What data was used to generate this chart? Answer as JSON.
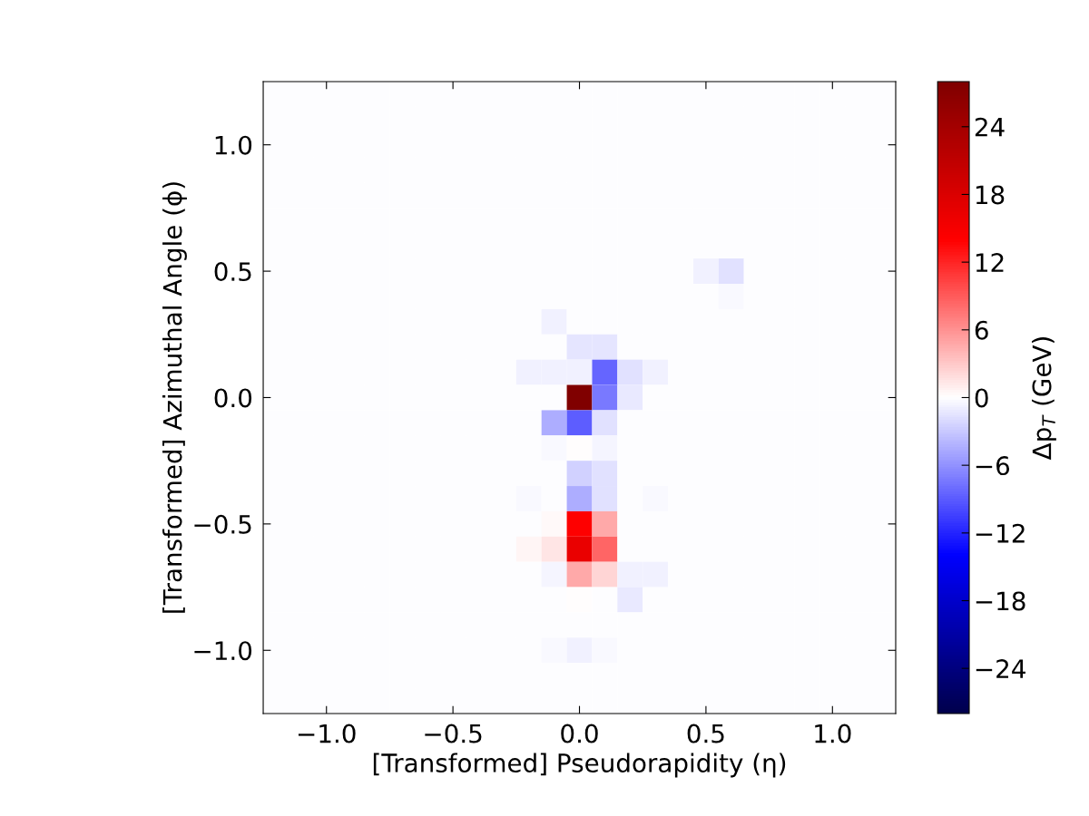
{
  "chart_data": {
    "type": "heatmap",
    "xlabel": "[Transformed] Pseudorapidity (η)",
    "ylabel": "[Transformed] Azimuthal Angle (ϕ)",
    "clabel": "Δp$_{T}$ (GeV)",
    "x": [
      -1.2,
      -1.1,
      -1.0,
      -0.9,
      -0.8,
      -0.7,
      -0.6,
      -0.5,
      -0.4,
      -0.3,
      -0.2,
      -0.1,
      0.0,
      0.1,
      0.2,
      0.3,
      0.4,
      0.5,
      0.6,
      0.7,
      0.8,
      0.9,
      1.0,
      1.1,
      1.2
    ],
    "y": [
      1.2,
      1.1,
      1.0,
      0.9,
      0.8,
      0.7,
      0.6,
      0.5,
      0.4,
      0.3,
      0.2,
      0.1,
      0.0,
      -0.1,
      -0.2,
      -0.3,
      -0.4,
      -0.5,
      -0.6,
      -0.7,
      -0.8,
      -0.9,
      -1.0,
      -1.1,
      -1.2
    ],
    "xlim": [
      -1.25,
      1.25
    ],
    "ylim": [
      -1.25,
      1.25
    ],
    "xticks": [
      {
        "value": -1.0,
        "label": "−1.0"
      },
      {
        "value": -0.5,
        "label": "−0.5"
      },
      {
        "value": 0.0,
        "label": "0.0"
      },
      {
        "value": 0.5,
        "label": "0.5"
      },
      {
        "value": 1.0,
        "label": "1.0"
      }
    ],
    "yticks": [
      {
        "value": -1.0,
        "label": "−1.0"
      },
      {
        "value": -0.5,
        "label": "−0.5"
      },
      {
        "value": 0.0,
        "label": "0.0"
      },
      {
        "value": 0.5,
        "label": "0.5"
      },
      {
        "value": 1.0,
        "label": "1.0"
      }
    ],
    "clim": [
      -28,
      28
    ],
    "cticks": [
      {
        "value": -24,
        "label": "−24"
      },
      {
        "value": -18,
        "label": "−18"
      },
      {
        "value": -12,
        "label": "−12"
      },
      {
        "value": -6,
        "label": "−6"
      },
      0,
      6,
      12,
      18,
      24
    ],
    "cells": [
      [
        -0.1,
        -0.1,
        -0.1,
        -0.1,
        -0.1,
        -0.1,
        -0.1,
        -0.1,
        -0.1,
        -0.1,
        -0.1,
        -0.1,
        -0.1,
        -0.1,
        -0.1,
        -0.1,
        -0.1,
        -0.1,
        -0.1,
        -0.1,
        -0.1,
        -0.1,
        -0.1,
        -0.1,
        -0.1
      ],
      [
        -0.1,
        -0.1,
        -0.1,
        -0.1,
        -0.1,
        -0.1,
        -0.1,
        -0.1,
        -0.1,
        -0.1,
        -0.1,
        -0.1,
        -0.1,
        -0.1,
        -0.1,
        -0.1,
        -0.1,
        -0.1,
        -0.1,
        -0.1,
        -0.1,
        -0.1,
        -0.1,
        -0.1,
        -0.1
      ],
      [
        -0.1,
        -0.1,
        -0.1,
        -0.1,
        -0.1,
        -0.1,
        -0.1,
        -0.1,
        -0.1,
        -0.1,
        -0.1,
        -0.1,
        -0.1,
        -0.1,
        -0.1,
        -0.1,
        -0.1,
        -0.1,
        -0.1,
        -0.1,
        -0.1,
        -0.1,
        -0.1,
        -0.1,
        -0.1
      ],
      [
        -0.1,
        -0.1,
        -0.1,
        -0.1,
        -0.1,
        -0.1,
        -0.1,
        -0.1,
        -0.1,
        -0.1,
        -0.1,
        -0.1,
        -0.1,
        -0.1,
        -0.1,
        -0.1,
        -0.1,
        -0.1,
        -0.1,
        -0.1,
        -0.1,
        -0.1,
        -0.1,
        -0.1,
        -0.1
      ],
      [
        -0.1,
        -0.1,
        -0.1,
        -0.1,
        -0.1,
        -0.1,
        -0.1,
        -0.1,
        -0.1,
        -0.1,
        -0.1,
        -0.1,
        -0.1,
        -0.1,
        -0.1,
        -0.1,
        -0.1,
        -0.1,
        -0.1,
        -0.1,
        -0.1,
        -0.1,
        -0.1,
        -0.1,
        -0.1
      ],
      [
        -0.1,
        -0.1,
        -0.1,
        -0.1,
        -0.1,
        -0.1,
        -0.1,
        -0.1,
        -0.1,
        -0.1,
        -0.1,
        -0.1,
        -0.1,
        -0.1,
        -0.1,
        -0.1,
        -0.1,
        -0.1,
        -0.1,
        -0.1,
        -0.1,
        -0.1,
        -0.1,
        -0.1,
        -0.1
      ],
      [
        -0.1,
        -0.1,
        -0.1,
        -0.1,
        -0.1,
        -0.1,
        -0.1,
        -0.1,
        -0.1,
        -0.1,
        -0.1,
        -0.1,
        -0.1,
        -0.1,
        -0.1,
        -0.1,
        -0.1,
        -0.1,
        -0.1,
        -0.1,
        -0.1,
        -0.1,
        -0.1,
        -0.1,
        -0.1
      ],
      [
        -0.1,
        -0.1,
        -0.1,
        -0.1,
        -0.1,
        -0.1,
        -0.1,
        -0.1,
        -0.1,
        -0.1,
        -0.1,
        -0.1,
        -0.1,
        -0.1,
        -0.1,
        -0.1,
        -0.1,
        -0.8,
        -1.6,
        -0.1,
        -0.1,
        -0.1,
        -0.1,
        -0.1,
        -0.1
      ],
      [
        -0.1,
        -0.1,
        -0.1,
        -0.1,
        -0.1,
        -0.1,
        -0.1,
        -0.1,
        -0.1,
        -0.1,
        -0.1,
        -0.1,
        -0.1,
        -0.1,
        -0.1,
        -0.1,
        -0.1,
        -0.1,
        -0.3,
        -0.1,
        -0.1,
        -0.1,
        -0.1,
        -0.1,
        -0.1
      ],
      [
        -0.1,
        -0.1,
        -0.1,
        -0.1,
        -0.1,
        -0.1,
        -0.1,
        -0.1,
        -0.1,
        -0.1,
        -0.1,
        -0.8,
        -0.1,
        -0.1,
        -0.1,
        -0.1,
        -0.1,
        -0.1,
        -0.1,
        -0.1,
        -0.1,
        -0.1,
        -0.1,
        -0.1,
        -0.1
      ],
      [
        -0.1,
        -0.1,
        -0.1,
        -0.1,
        -0.1,
        -0.1,
        -0.1,
        -0.1,
        -0.1,
        -0.1,
        -0.1,
        -0.1,
        -1.4,
        -1.4,
        -0.1,
        -0.1,
        -0.1,
        -0.1,
        -0.1,
        -0.1,
        -0.1,
        -0.1,
        -0.1,
        -0.1,
        -0.1
      ],
      [
        -0.1,
        -0.1,
        -0.1,
        -0.1,
        -0.1,
        -0.1,
        -0.1,
        -0.1,
        -0.1,
        -0.1,
        -0.8,
        -0.8,
        -0.8,
        -8.5,
        -1.6,
        -0.7,
        -0.1,
        -0.1,
        -0.1,
        -0.1,
        -0.1,
        -0.1,
        -0.1,
        -0.1,
        -0.1
      ],
      [
        -0.1,
        -0.1,
        -0.1,
        -0.1,
        -0.1,
        -0.1,
        -0.1,
        -0.1,
        -0.1,
        -0.1,
        -0.1,
        -0.1,
        28,
        -7.4,
        -1.2,
        -0.1,
        -0.1,
        -0.1,
        -0.1,
        -0.1,
        -0.1,
        -0.1,
        -0.1,
        -0.1,
        -0.1
      ],
      [
        -0.1,
        -0.1,
        -0.1,
        -0.1,
        -0.1,
        -0.1,
        -0.1,
        -0.1,
        -0.1,
        -0.1,
        -0.1,
        -4.4,
        -8.8,
        -1.6,
        -0.1,
        -0.1,
        -0.1,
        -0.1,
        -0.1,
        -0.1,
        -0.1,
        -0.1,
        -0.1,
        -0.1,
        -0.1
      ],
      [
        -0.1,
        -0.1,
        -0.1,
        -0.1,
        -0.1,
        -0.1,
        -0.1,
        -0.1,
        -0.1,
        -0.1,
        -0.1,
        -0.4,
        0,
        -0.5,
        -0.1,
        -0.1,
        -0.1,
        -0.1,
        -0.1,
        -0.1,
        -0.1,
        -0.1,
        -0.1,
        -0.1,
        -0.1
      ],
      [
        -0.1,
        -0.1,
        -0.1,
        -0.1,
        -0.1,
        -0.1,
        -0.1,
        -0.1,
        -0.1,
        -0.1,
        -0.1,
        -0.1,
        -2.5,
        -1.6,
        -0.1,
        -0.1,
        -0.1,
        -0.1,
        -0.1,
        -0.1,
        -0.1,
        -0.1,
        -0.1,
        -0.1,
        -0.1
      ],
      [
        -0.1,
        -0.1,
        -0.1,
        -0.1,
        -0.1,
        -0.1,
        -0.1,
        -0.1,
        -0.1,
        -0.1,
        -0.3,
        -0.1,
        -4.4,
        -1.6,
        -0.1,
        -0.3,
        -0.1,
        -0.1,
        -0.1,
        -0.1,
        -0.1,
        -0.1,
        -0.1,
        -0.1,
        -0.1
      ],
      [
        -0.1,
        -0.1,
        -0.1,
        -0.1,
        -0.1,
        -0.1,
        -0.1,
        -0.1,
        -0.1,
        -0.1,
        -0.1,
        0.3,
        14,
        4.7,
        -0.1,
        -0.1,
        -0.1,
        -0.1,
        -0.1,
        -0.1,
        -0.1,
        -0.1,
        -0.1,
        -0.1,
        -0.1
      ],
      [
        -0.1,
        -0.1,
        -0.1,
        -0.1,
        -0.1,
        -0.1,
        -0.1,
        -0.1,
        -0.1,
        -0.1,
        0.5,
        1.4,
        16.3,
        8.5,
        -0.1,
        -0.1,
        -0.1,
        -0.1,
        -0.1,
        -0.1,
        -0.1,
        -0.1,
        -0.1,
        -0.1,
        -0.1
      ],
      [
        -0.1,
        -0.1,
        -0.1,
        -0.1,
        -0.1,
        -0.1,
        -0.1,
        -0.1,
        -0.1,
        -0.1,
        -0.1,
        -0.6,
        4.7,
        2.2,
        -0.8,
        -0.8,
        -0.1,
        -0.1,
        -0.1,
        -0.1,
        -0.1,
        -0.1,
        -0.1,
        -0.1,
        -0.1
      ],
      [
        -0.1,
        -0.1,
        -0.1,
        -0.1,
        -0.1,
        -0.1,
        -0.1,
        -0.1,
        -0.1,
        -0.1,
        -0.1,
        -0.1,
        0,
        -0.1,
        -1.2,
        -0.1,
        -0.1,
        -0.1,
        -0.1,
        -0.1,
        -0.1,
        -0.1,
        -0.1,
        -0.1,
        -0.1
      ],
      [
        -0.1,
        -0.1,
        -0.1,
        -0.1,
        -0.1,
        -0.1,
        -0.1,
        -0.1,
        -0.1,
        -0.1,
        -0.1,
        -0.1,
        -0.1,
        -0.1,
        -0.1,
        -0.1,
        -0.1,
        -0.1,
        -0.1,
        -0.1,
        -0.1,
        -0.1,
        -0.1,
        -0.1,
        -0.1
      ],
      [
        -0.1,
        -0.1,
        -0.1,
        -0.1,
        -0.1,
        -0.1,
        -0.1,
        -0.1,
        -0.1,
        -0.1,
        -0.1,
        -0.3,
        -0.8,
        -0.4,
        -0.1,
        -0.1,
        -0.1,
        -0.1,
        -0.1,
        -0.1,
        -0.1,
        -0.1,
        -0.1,
        -0.1,
        -0.1
      ],
      [
        -0.1,
        -0.1,
        -0.1,
        -0.1,
        -0.1,
        -0.1,
        -0.1,
        -0.1,
        -0.1,
        -0.1,
        -0.1,
        -0.1,
        -0.1,
        -0.1,
        -0.1,
        -0.1,
        -0.1,
        -0.1,
        -0.1,
        -0.1,
        -0.1,
        -0.1,
        -0.1,
        -0.1,
        -0.1
      ],
      [
        -0.1,
        -0.1,
        -0.1,
        -0.1,
        -0.1,
        -0.1,
        -0.1,
        -0.1,
        -0.1,
        -0.1,
        -0.1,
        -0.1,
        -0.1,
        -0.1,
        -0.1,
        -0.1,
        -0.1,
        -0.1,
        -0.1,
        -0.1,
        -0.1,
        -0.1,
        -0.1,
        -0.1,
        -0.1
      ]
    ]
  }
}
